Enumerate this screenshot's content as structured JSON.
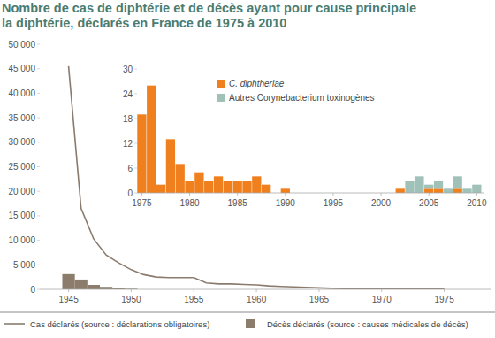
{
  "chart_data": [
    {
      "type": "line",
      "title": "Nombre de cas de diphtérie et de décès ayant pour cause principale la diphtérie, déclarés en France de 1975 à 2010",
      "x": [
        1945,
        1946,
        1947,
        1948,
        1949,
        1950,
        1951,
        1952,
        1953,
        1954,
        1955,
        1956,
        1957,
        1958,
        1959,
        1960,
        1961,
        1962,
        1963,
        1964,
        1965,
        1966,
        1967,
        1968,
        1969,
        1970,
        1971,
        1972,
        1973,
        1974,
        1975
      ],
      "xlim": [
        1942.7,
        1978.7
      ],
      "xticks": [
        1945,
        1950,
        1955,
        1960,
        1965,
        1970,
        1975
      ],
      "ylim": [
        0,
        50000
      ],
      "yticks": [
        0,
        {
          "value": 5000,
          "label": "5 000"
        },
        {
          "value": 10000,
          "label": "10 000"
        },
        {
          "value": 15000,
          "label": "15 000"
        },
        {
          "value": 20000,
          "label": "20 000"
        },
        {
          "value": 25000,
          "label": "25 000"
        },
        {
          "value": 30000,
          "label": "30 000"
        },
        {
          "value": 35000,
          "label": "35 000"
        },
        {
          "value": 40000,
          "label": "40 000"
        },
        {
          "value": 45000,
          "label": "45 000"
        },
        {
          "value": 50000,
          "label": "50 000"
        }
      ],
      "grid": false,
      "legend": "bottom",
      "series": [
        {
          "name": "Cas déclarés (source : déclarations obligatoires)",
          "type": "line",
          "color": "#8a7b6e",
          "values": [
            45500,
            16500,
            10300,
            7000,
            5400,
            4000,
            3000,
            2500,
            2400,
            2400,
            2400,
            1300,
            1100,
            1100,
            1000,
            900,
            700,
            600,
            500,
            400,
            300,
            200,
            150,
            100,
            60,
            40,
            30,
            25,
            20,
            20,
            19
          ]
        },
        {
          "name": "Décès déclarés (source : causes médicales de décès)",
          "type": "bar",
          "color": "#8c7c6c",
          "values": [
            3100,
            2000,
            900,
            500,
            250,
            120,
            null,
            null,
            null,
            null,
            null,
            null,
            null,
            null,
            null,
            null,
            null,
            null,
            null,
            null,
            null,
            null,
            null,
            null,
            null,
            null,
            null,
            null,
            null,
            null,
            null
          ]
        }
      ]
    },
    {
      "type": "bar",
      "stacked": true,
      "x": [
        1975,
        1976,
        1977,
        1978,
        1979,
        1980,
        1981,
        1982,
        1983,
        1984,
        1985,
        1986,
        1987,
        1988,
        1989,
        1990,
        1991,
        1992,
        1993,
        1994,
        1995,
        1996,
        1997,
        1998,
        1999,
        2000,
        2001,
        2002,
        2003,
        2004,
        2005,
        2006,
        2007,
        2008,
        2009,
        2010
      ],
      "xlim": [
        1974.5,
        2010.8
      ],
      "xticks": [
        1975,
        1980,
        1985,
        1990,
        1995,
        2000,
        2005,
        2010
      ],
      "ylim": [
        0,
        30
      ],
      "yticks": [
        0,
        6,
        12,
        18,
        24,
        30
      ],
      "grid": false,
      "legend": "upper left",
      "series": [
        {
          "name": "C. diphtheriae",
          "color": "#f07f1d",
          "values": [
            19,
            26,
            2,
            13,
            7,
            3,
            5,
            3,
            4,
            3,
            3,
            3,
            4,
            2,
            0,
            1,
            0,
            0,
            0,
            0,
            0,
            0,
            0,
            0,
            0,
            0,
            0,
            1,
            0,
            0,
            1,
            1,
            0,
            1,
            0,
            0
          ]
        },
        {
          "name": "Autres Corynebacterium toxinogènes",
          "color": "#9fc1b8",
          "values": [
            0,
            0,
            0,
            0,
            0,
            0,
            0,
            0,
            0,
            0,
            0,
            0,
            0,
            0,
            0,
            0,
            0,
            0,
            0,
            0,
            0,
            0,
            0,
            0,
            0,
            0,
            0,
            0,
            3,
            4,
            1,
            2,
            1,
            3,
            1,
            2
          ]
        }
      ]
    }
  ]
}
